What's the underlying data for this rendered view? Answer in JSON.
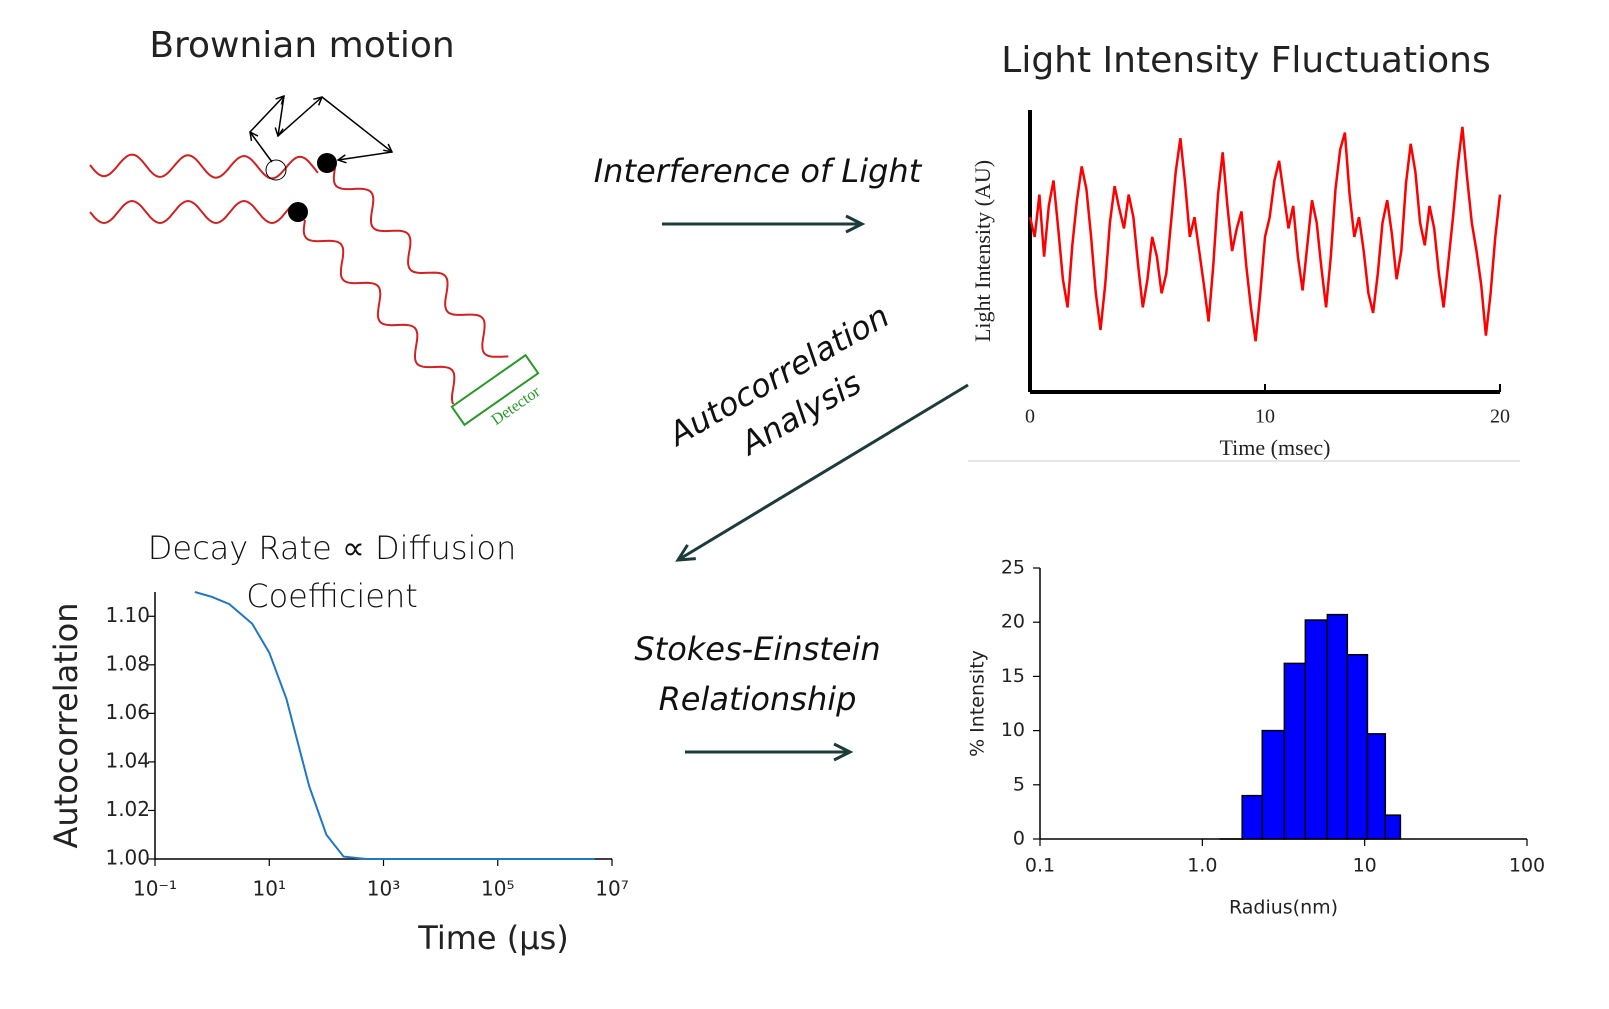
{
  "brownian_title": "Brownian motion",
  "detector_label": "Detector",
  "arrows": [
    {
      "label": "Interference of Light"
    },
    {
      "label": "Autocorrelation Analysis"
    },
    {
      "label": "Stokes-Einstein Relationship"
    }
  ],
  "chart_data": [
    {
      "type": "line",
      "title": "Light Intensity Fluctuations",
      "x_label": "Time (msec)",
      "y_label": "Light Intensity (AU)",
      "color": "#ff0000",
      "xlim": [
        0,
        20
      ],
      "xticks": [
        0,
        10,
        20
      ],
      "ylim": [
        0,
        1
      ],
      "x": [
        0,
        0.2,
        0.4,
        0.6,
        0.8,
        1,
        1.2,
        1.4,
        1.6,
        1.8,
        2,
        2.2,
        2.4,
        2.6,
        2.8,
        3,
        3.2,
        3.4,
        3.6,
        3.8,
        4,
        4.2,
        4.4,
        4.6,
        4.8,
        5,
        5.2,
        5.4,
        5.6,
        5.8,
        6,
        6.2,
        6.4,
        6.6,
        6.8,
        7,
        7.2,
        7.4,
        7.6,
        7.8,
        8,
        8.2,
        8.4,
        8.6,
        8.8,
        9,
        9.2,
        9.4,
        9.6,
        9.8,
        10,
        10.2,
        10.4,
        10.6,
        10.8,
        11,
        11.2,
        11.4,
        11.6,
        11.8,
        12,
        12.2,
        12.4,
        12.6,
        12.8,
        13,
        13.2,
        13.4,
        13.6,
        13.8,
        14,
        14.2,
        14.4,
        14.6,
        14.8,
        15,
        15.2,
        15.4,
        15.6,
        15.8,
        16,
        16.2,
        16.4,
        16.6,
        16.8,
        17,
        17.2,
        17.4,
        17.6,
        17.8,
        18,
        18.2,
        18.4,
        18.6,
        18.8,
        19,
        19.2,
        19.4,
        19.6,
        19.8,
        20
      ],
      "values": [
        0.62,
        0.55,
        0.7,
        0.48,
        0.66,
        0.75,
        0.58,
        0.4,
        0.3,
        0.52,
        0.68,
        0.8,
        0.72,
        0.55,
        0.35,
        0.22,
        0.38,
        0.6,
        0.73,
        0.65,
        0.58,
        0.7,
        0.62,
        0.45,
        0.3,
        0.4,
        0.55,
        0.48,
        0.35,
        0.42,
        0.6,
        0.78,
        0.9,
        0.74,
        0.55,
        0.62,
        0.5,
        0.38,
        0.25,
        0.45,
        0.7,
        0.85,
        0.66,
        0.5,
        0.58,
        0.64,
        0.45,
        0.3,
        0.18,
        0.35,
        0.55,
        0.62,
        0.75,
        0.82,
        0.7,
        0.58,
        0.66,
        0.48,
        0.36,
        0.52,
        0.68,
        0.6,
        0.44,
        0.3,
        0.48,
        0.72,
        0.86,
        0.92,
        0.7,
        0.55,
        0.62,
        0.5,
        0.35,
        0.28,
        0.42,
        0.6,
        0.68,
        0.56,
        0.4,
        0.5,
        0.74,
        0.88,
        0.78,
        0.6,
        0.52,
        0.66,
        0.58,
        0.42,
        0.3,
        0.46,
        0.62,
        0.8,
        0.94,
        0.76,
        0.6,
        0.5,
        0.38,
        0.2,
        0.35,
        0.55,
        0.7
      ]
    },
    {
      "type": "line",
      "title": "Decay Rate ∝ Diffusion Coefficient",
      "x_label": "Time (µs)",
      "y_label": "Autocorrelation",
      "color": "#1f77c8",
      "x_scale": "log",
      "xlim": [
        0.1,
        10000000
      ],
      "xticks": [
        {
          "value": 0.1,
          "label": "10⁻¹"
        },
        {
          "value": 10,
          "label": "10¹"
        },
        {
          "value": 1000,
          "label": "10³"
        },
        {
          "value": 100000,
          "label": "10⁵"
        },
        {
          "value": 10000000,
          "label": "10⁷"
        }
      ],
      "ylim": [
        1.0,
        1.11
      ],
      "yticks": [
        {
          "value": 1.0,
          "label": "1.00"
        },
        {
          "value": 1.02,
          "label": "1.02"
        },
        {
          "value": 1.04,
          "label": "1.04"
        },
        {
          "value": 1.06,
          "label": "1.06"
        },
        {
          "value": 1.08,
          "label": "1.08"
        },
        {
          "value": 1.1,
          "label": "1.10"
        }
      ],
      "x": [
        0.5,
        1,
        2,
        5,
        10,
        20,
        30,
        50,
        100,
        200,
        500,
        1000,
        10000,
        100000,
        1000000,
        5000000
      ],
      "values": [
        1.11,
        1.108,
        1.105,
        1.097,
        1.085,
        1.066,
        1.05,
        1.03,
        1.01,
        1.001,
        1.0,
        1.0,
        1.0,
        1.0,
        1.0,
        1.0
      ]
    },
    {
      "type": "histogram",
      "x_label": "Radius(nm)",
      "y_label": "% Intensity",
      "color": "#0000ff",
      "x_scale": "log",
      "xlim": [
        0.1,
        100
      ],
      "xticks": [
        0.1,
        {
          "value": 1,
          "label": "1.0"
        },
        10,
        100
      ],
      "ylim": [
        0,
        25
      ],
      "yticks": [
        0,
        5,
        10,
        15,
        20,
        25
      ],
      "bins": [
        1.29,
        1.76,
        2.34,
        3.2,
        4.31,
        5.89,
        7.82,
        10.4,
        13.4,
        16.6
      ],
      "values": [
        0,
        4,
        10,
        16.2,
        20.2,
        20.7,
        17,
        9.7,
        2.2
      ]
    }
  ]
}
